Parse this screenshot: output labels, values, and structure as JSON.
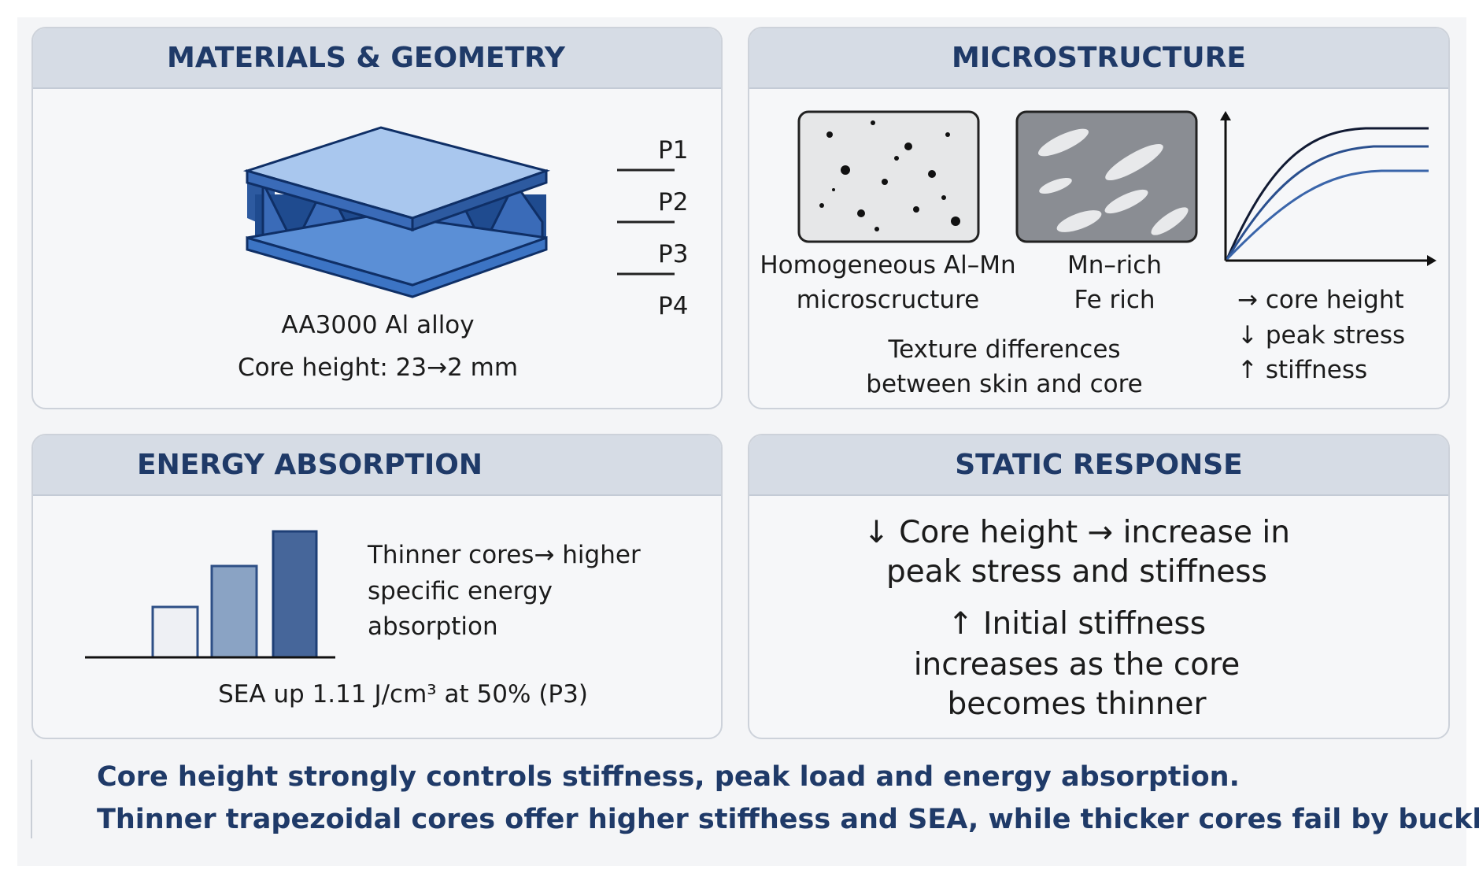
{
  "panels": [
    {
      "title": "MATERIALS & GEOMETRY",
      "layers": [
        "P1",
        "P2",
        "P3",
        "P4"
      ],
      "material": "AA3000 Al alloy",
      "core_height": "Core height: 23→2 mm"
    },
    {
      "title": "MICROSTRUCTURE",
      "images": [
        {
          "caption": [
            "Homogeneous Al–Mn",
            "microscructure"
          ]
        },
        {
          "caption": [
            "Mn–rich",
            "Fe rich"
          ]
        }
      ],
      "note": [
        "Texture differences",
        "between skin and core"
      ],
      "legend": [
        "→ core height",
        "↓ peak stress",
        "↑ stiffness"
      ]
    },
    {
      "title": "ENERGY ABSORPTION",
      "text": [
        "Thinner cores→ higher",
        "specific energy",
        "absorption"
      ],
      "sea": "SEA up 1.11 J/cm³  at 50% (P3)"
    },
    {
      "title": "STATIC RESPONSE",
      "text": [
        "↓ Core height → increase in",
        "peak stress and stiffness",
        "↑ Initial stiffness",
        "increases as the core",
        "becomes thinner"
      ]
    }
  ],
  "footer": [
    "Core height strongly controls stiffness, peak load and energy absorption.",
    "Thinner trapezoidal cores offer higher stiffhess and SEA, while thicker cores fail by buckling."
  ]
}
